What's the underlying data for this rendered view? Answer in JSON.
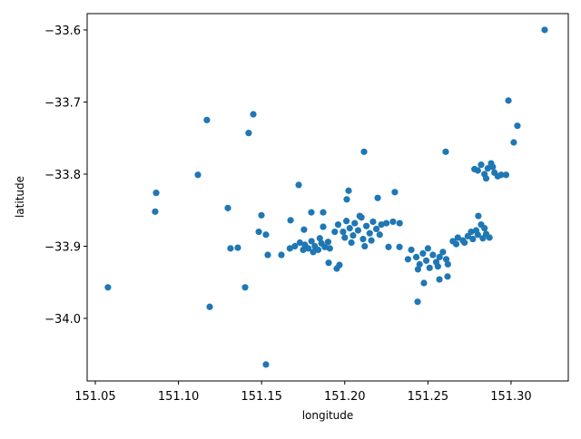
{
  "chart_data": {
    "type": "scatter",
    "x_label": "longitude",
    "y_label": "latitude",
    "color": "#1f77b4",
    "xlim": [
      151.0451,
      151.3344
    ],
    "ylim": [
      -34.0868,
      -33.5774
    ],
    "xticks": [
      {
        "value": 151.05,
        "label": "151.05"
      },
      {
        "value": 151.1,
        "label": "151.10"
      },
      {
        "value": 151.15,
        "label": "151.15"
      },
      {
        "value": 151.2,
        "label": "151.20"
      },
      {
        "value": 151.25,
        "label": "151.25"
      },
      {
        "value": 151.3,
        "label": "151.30"
      }
    ],
    "yticks": [
      {
        "value": -33.6,
        "label": "−33.6"
      },
      {
        "value": -33.7,
        "label": "−33.7"
      },
      {
        "value": -33.8,
        "label": "−33.8"
      },
      {
        "value": -33.9,
        "label": "−33.9"
      },
      {
        "value": -34.0,
        "label": "−34.0"
      }
    ],
    "x": [
      151.3202,
      151.2984,
      151.3038,
      151.3016,
      151.1171,
      151.145,
      151.1422,
      151.1117,
      151.0866,
      151.086,
      151.0576,
      151.1188,
      151.1526,
      151.1401,
      151.1297,
      151.1313,
      151.1357,
      151.1483,
      151.1526,
      151.1499,
      151.1537,
      151.1619,
      151.1723,
      151.1674,
      151.2116,
      151.2607,
      151.2023,
      151.2012,
      151.2198,
      151.2301,
      151.1968,
      151.1903,
      151.1952,
      151.2438,
      151.2476,
      151.2569,
      151.2618,
      151.187,
      151.187,
      151.1799,
      151.1755,
      151.2803,
      151.2329,
      151.2263,
      151.17,
      151.173,
      151.176,
      151.178,
      151.18,
      151.182,
      151.184,
      151.186,
      151.188,
      151.19,
      151.175,
      151.181,
      151.185,
      151.191,
      151.167,
      151.196,
      151.199,
      151.201,
      151.203,
      151.205,
      151.206,
      151.208,
      151.21,
      151.211,
      151.213,
      151.215,
      151.217,
      151.219,
      151.222,
      151.225,
      151.229,
      151.204,
      151.212,
      151.2,
      151.194,
      151.209,
      151.216,
      151.221,
      151.233,
      151.24,
      151.243,
      151.245,
      151.247,
      151.249,
      151.251,
      151.253,
      151.255,
      151.257,
      151.259,
      151.261,
      151.244,
      151.25,
      151.256,
      151.238,
      151.262,
      151.265,
      151.268,
      151.271,
      151.274,
      151.277,
      151.28,
      151.283,
      151.285,
      151.287,
      151.279,
      151.282,
      151.284,
      151.272,
      151.267,
      151.276,
      151.28,
      151.282,
      151.284,
      151.286,
      151.288,
      151.29,
      151.292,
      151.294,
      151.297,
      151.278,
      151.285,
      151.289
    ],
    "values": [
      -33.6,
      -33.698,
      -33.733,
      -33.756,
      -33.725,
      -33.717,
      -33.743,
      -33.801,
      -33.826,
      -33.852,
      -33.957,
      -33.984,
      -34.064,
      -33.957,
      -33.847,
      -33.903,
      -33.902,
      -33.88,
      -33.884,
      -33.857,
      -33.912,
      -33.912,
      -33.815,
      -33.864,
      -33.769,
      -33.769,
      -33.823,
      -33.835,
      -33.833,
      -33.825,
      -33.926,
      -33.923,
      -33.931,
      -33.977,
      -33.951,
      -33.946,
      -33.942,
      -33.853,
      -33.873,
      -33.853,
      -33.877,
      -33.858,
      -33.901,
      -33.901,
      -33.9,
      -33.895,
      -33.898,
      -33.903,
      -33.893,
      -33.9,
      -33.905,
      -33.896,
      -33.901,
      -33.894,
      -33.905,
      -33.908,
      -33.889,
      -33.903,
      -33.903,
      -33.87,
      -33.88,
      -33.865,
      -33.875,
      -33.885,
      -33.868,
      -33.878,
      -33.86,
      -33.89,
      -33.872,
      -33.882,
      -33.866,
      -33.876,
      -33.87,
      -33.868,
      -33.866,
      -33.895,
      -33.9,
      -33.888,
      -33.88,
      -33.858,
      -33.892,
      -33.884,
      -33.868,
      -33.905,
      -33.915,
      -33.925,
      -33.91,
      -33.92,
      -33.93,
      -33.912,
      -33.922,
      -33.915,
      -33.908,
      -33.918,
      -33.932,
      -33.903,
      -33.928,
      -33.918,
      -33.925,
      -33.893,
      -33.888,
      -33.892,
      -33.886,
      -33.89,
      -33.884,
      -33.889,
      -33.883,
      -33.888,
      -33.878,
      -33.87,
      -33.875,
      -33.895,
      -33.897,
      -33.88,
      -33.795,
      -33.787,
      -33.8,
      -33.792,
      -33.785,
      -33.798,
      -33.803,
      -33.801,
      -33.801,
      -33.793,
      -33.806,
      -33.79
    ]
  }
}
